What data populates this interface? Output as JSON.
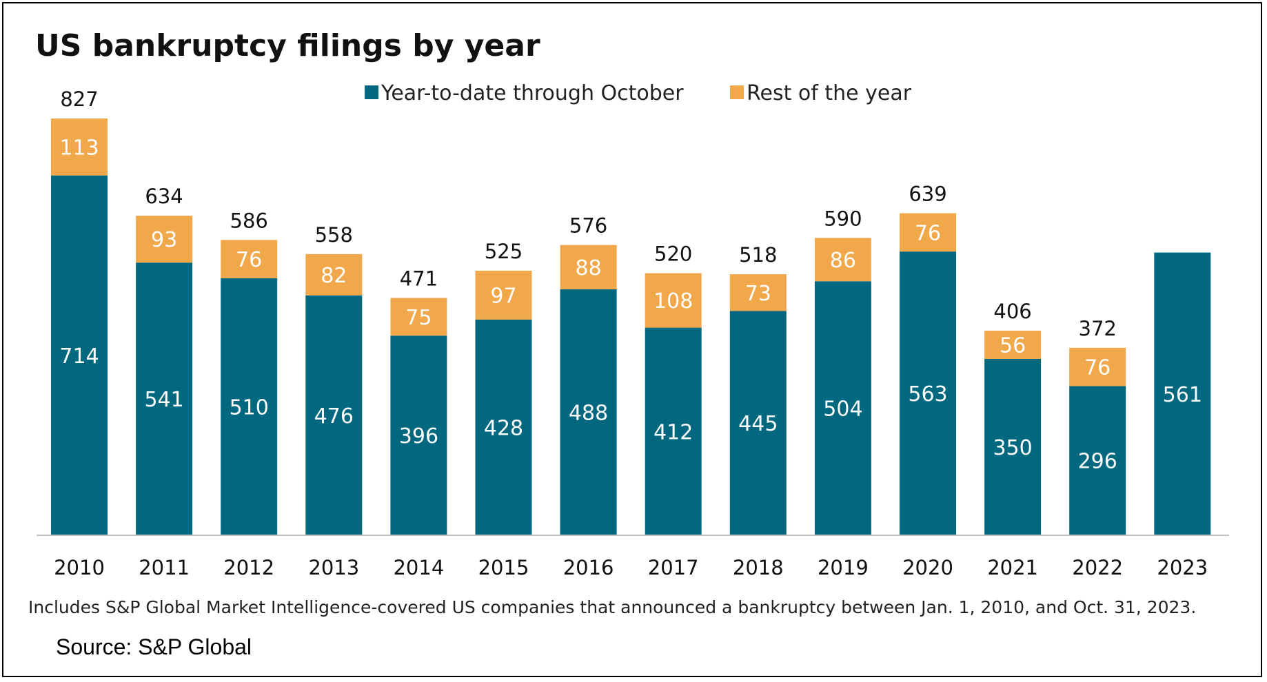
{
  "chart_data": {
    "type": "bar",
    "stacked": true,
    "title": "US bankruptcy filings by year",
    "categories": [
      "2010",
      "2011",
      "2012",
      "2013",
      "2014",
      "2015",
      "2016",
      "2017",
      "2018",
      "2019",
      "2020",
      "2021",
      "2022",
      "2023"
    ],
    "series": [
      {
        "name": "Year-to-date through October",
        "values": [
          714,
          541,
          510,
          476,
          396,
          428,
          488,
          412,
          445,
          504,
          563,
          350,
          296,
          561
        ]
      },
      {
        "name": "Rest of the year",
        "values": [
          113,
          93,
          76,
          82,
          75,
          97,
          88,
          108,
          73,
          86,
          76,
          56,
          76,
          null
        ]
      }
    ],
    "totals": [
      827,
      634,
      586,
      558,
      471,
      525,
      576,
      520,
      518,
      590,
      639,
      406,
      372,
      null
    ],
    "legend": "top",
    "grid": false,
    "ylim": [
      0,
      827
    ],
    "note": "Includes S&P Global Market Intelligence-covered US companies that announced a bankruptcy between Jan. 1, 2010, and Oct. 31, 2023.",
    "source": "Source: S&P Global"
  },
  "colors": {
    "ytd": "#02687f",
    "rest": "#f1a84a",
    "axis": "#bfbfbf"
  }
}
